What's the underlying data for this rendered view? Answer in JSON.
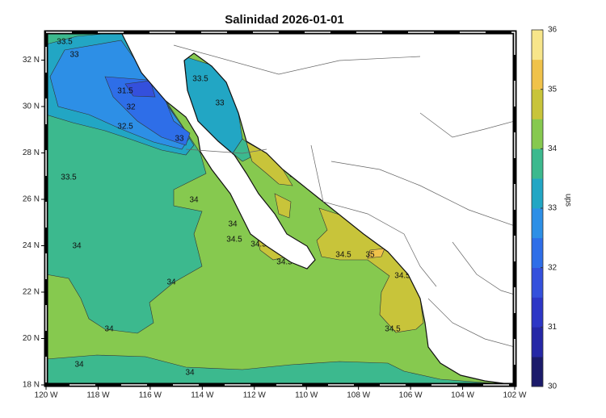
{
  "map": {
    "title": "Salinidad 2026-01-01",
    "xlim": [
      -120,
      -102
    ],
    "ylim": [
      18,
      33.2
    ],
    "xticks": [
      {
        "value": -120,
        "label": "120 W"
      },
      {
        "value": -118,
        "label": "118 W"
      },
      {
        "value": -116,
        "label": "116 W"
      },
      {
        "value": -114,
        "label": "114 W"
      },
      {
        "value": -112,
        "label": "112 W"
      },
      {
        "value": -110,
        "label": "110 W"
      },
      {
        "value": -108,
        "label": "108 W"
      },
      {
        "value": -106,
        "label": "106 W"
      },
      {
        "value": -104,
        "label": "104 W"
      },
      {
        "value": -102,
        "label": "102 W"
      }
    ],
    "yticks": [
      {
        "value": 18,
        "label": "18 N"
      },
      {
        "value": 20,
        "label": "20 N"
      },
      {
        "value": 22,
        "label": "22 N"
      },
      {
        "value": 24,
        "label": "24 N"
      },
      {
        "value": 26,
        "label": "26 N"
      },
      {
        "value": 28,
        "label": "28 N"
      },
      {
        "value": 30,
        "label": "30 N"
      },
      {
        "value": 32,
        "label": "32 N"
      }
    ],
    "colorbar": {
      "label": "ups",
      "lim": [
        30,
        36
      ],
      "ticks": [
        30,
        31,
        32,
        33,
        34,
        35,
        36
      ],
      "colors": [
        "#1b1a6a",
        "#2527a6",
        "#2d36c6",
        "#3450dc",
        "#2e6ee8",
        "#2d8fe6",
        "#22a6c4",
        "#3cb98e",
        "#86c94f",
        "#c8c43a",
        "#f0c24a",
        "#f7e58a"
      ]
    },
    "contour_labels": [
      "33.5",
      "33",
      "31.5",
      "32",
      "32.5",
      "33.5",
      "34",
      "34",
      "34",
      "34",
      "34",
      "34",
      "34",
      "34.5",
      "34.5",
      "34.5",
      "34.5",
      "34.5",
      "35",
      "34.5",
      "34.5",
      "33.5",
      "33",
      "33"
    ]
  }
}
